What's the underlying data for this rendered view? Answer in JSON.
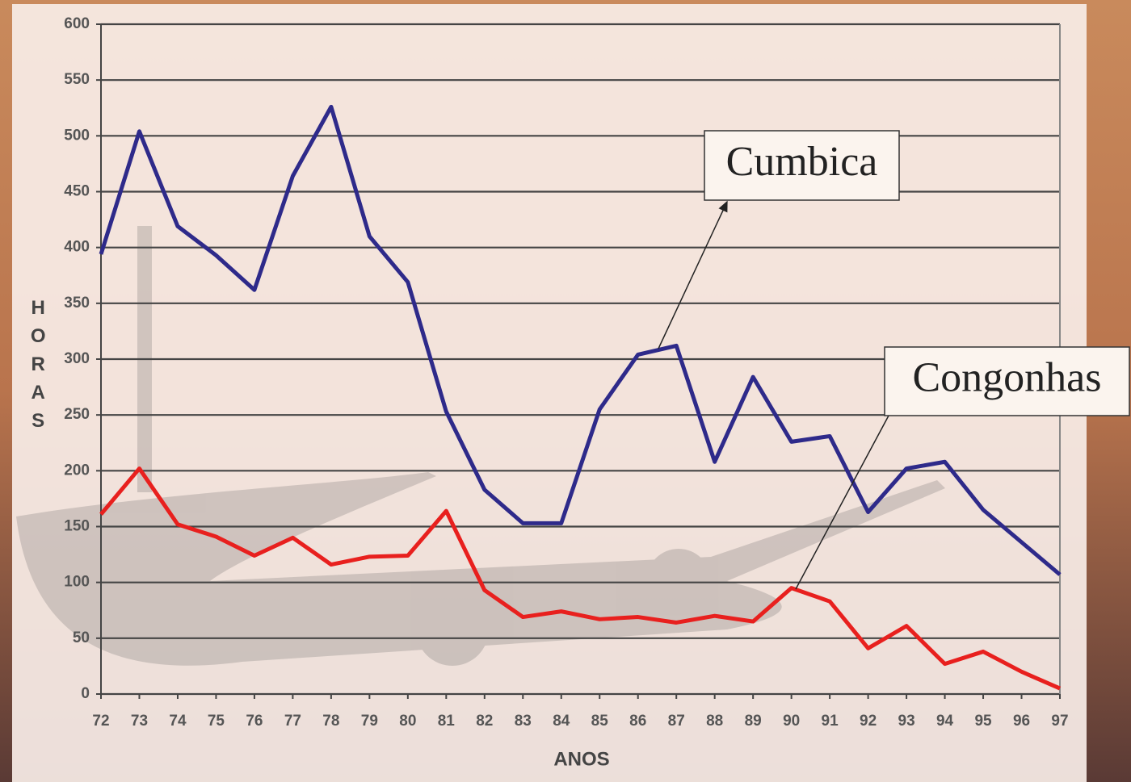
{
  "chart_data": {
    "type": "line",
    "x_label": "ANOS",
    "y_label": "HORAS",
    "x": [
      72,
      73,
      74,
      75,
      76,
      77,
      78,
      79,
      80,
      81,
      82,
      83,
      84,
      85,
      86,
      87,
      88,
      89,
      90,
      91,
      92,
      93,
      94,
      95,
      96,
      97
    ],
    "xlim": [
      72,
      97
    ],
    "xticks": [
      72,
      73,
      74,
      75,
      76,
      77,
      78,
      79,
      80,
      81,
      82,
      83,
      84,
      85,
      86,
      87,
      88,
      89,
      90,
      91,
      92,
      93,
      94,
      95,
      96,
      97
    ],
    "ylim": [
      0,
      600
    ],
    "yticks": [
      0,
      50,
      100,
      150,
      200,
      250,
      300,
      350,
      400,
      450,
      500,
      550,
      600
    ],
    "grid": true,
    "series": [
      {
        "name": "Cumbica",
        "color": "#2e2a8a",
        "values": [
          394,
          504,
          419,
          393,
          362,
          464,
          526,
          410,
          369,
          253,
          183,
          153,
          153,
          255,
          304,
          312,
          208,
          284,
          226,
          231,
          163,
          202,
          208,
          165,
          136,
          107
        ]
      },
      {
        "name": "Congonhas",
        "color": "#e8201e",
        "values": [
          161,
          202,
          152,
          141,
          124,
          140,
          116,
          123,
          124,
          164,
          93,
          69,
          74,
          67,
          69,
          64,
          70,
          65,
          95,
          83,
          41,
          61,
          27,
          38,
          20,
          5
        ]
      }
    ]
  }
}
